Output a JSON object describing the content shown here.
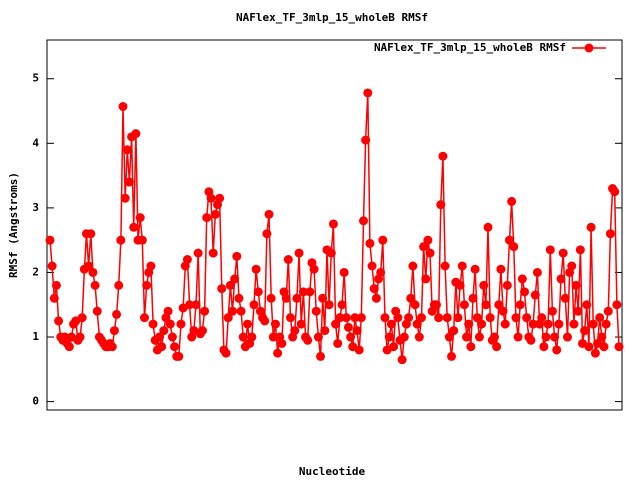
{
  "chart_data": {
    "type": "line",
    "title": "NAFlex_TF_3mlp_15_wholeB RMSf",
    "x_label": "Nucleotide",
    "y_label": "RMSf (Angstroms)",
    "ylim": [
      -0.13,
      5.6
    ],
    "yticks": [
      0,
      1,
      2,
      3,
      4,
      5
    ],
    "legend": "top-right",
    "series": [
      {
        "name": "NAFlex_TF_3mlp_15_wholeB RMSf",
        "color": "#ff0000",
        "values": [
          2.5,
          2.1,
          1.6,
          1.8,
          1.25,
          1.0,
          0.95,
          1.0,
          0.9,
          0.85,
          1.0,
          1.2,
          1.25,
          0.95,
          1.0,
          1.3,
          2.05,
          2.6,
          2.1,
          2.6,
          2.0,
          1.8,
          1.4,
          1.0,
          0.95,
          0.9,
          0.85,
          0.85,
          0.9,
          0.85,
          1.1,
          1.35,
          1.8,
          2.5,
          4.57,
          3.15,
          3.9,
          3.4,
          4.1,
          2.7,
          4.15,
          2.5,
          2.85,
          2.5,
          1.3,
          1.8,
          2.0,
          2.1,
          1.2,
          0.95,
          0.8,
          1.0,
          0.85,
          1.1,
          1.3,
          1.4,
          1.2,
          1.0,
          0.85,
          0.7,
          0.7,
          1.2,
          1.45,
          2.1,
          2.2,
          1.5,
          1.0,
          1.1,
          1.5,
          2.3,
          1.05,
          1.1,
          1.4,
          2.85,
          3.25,
          3.15,
          2.3,
          2.9,
          3.05,
          3.15,
          1.75,
          0.8,
          0.75,
          1.3,
          1.8,
          1.4,
          1.9,
          2.25,
          1.6,
          1.4,
          1.0,
          0.85,
          1.2,
          0.9,
          1.0,
          1.5,
          2.05,
          1.7,
          1.4,
          1.3,
          1.25,
          2.6,
          2.9,
          1.6,
          1.0,
          1.2,
          0.75,
          1.0,
          0.9,
          1.7,
          1.6,
          2.2,
          1.3,
          1.0,
          1.1,
          1.6,
          2.3,
          1.2,
          1.7,
          1.0,
          0.95,
          1.7,
          2.15,
          2.05,
          1.4,
          1.0,
          0.7,
          1.6,
          1.1,
          2.35,
          1.5,
          2.3,
          2.75,
          1.2,
          0.9,
          1.3,
          1.5,
          2.0,
          1.3,
          1.15,
          1.0,
          0.85,
          1.3,
          1.1,
          0.8,
          1.3,
          2.8,
          4.05,
          4.78,
          2.45,
          2.1,
          1.75,
          1.6,
          1.9,
          2.0,
          2.5,
          1.3,
          0.8,
          1.0,
          1.2,
          0.85,
          1.4,
          1.3,
          0.95,
          0.65,
          1.0,
          1.2,
          1.3,
          1.6,
          2.1,
          1.5,
          1.2,
          1.0,
          1.3,
          2.4,
          1.9,
          2.5,
          2.3,
          1.4,
          1.5,
          1.5,
          1.3,
          3.05,
          3.8,
          2.1,
          1.3,
          1.0,
          0.7,
          1.1,
          1.85,
          1.3,
          1.8,
          2.1,
          1.5,
          1.0,
          1.2,
          0.85,
          1.6,
          2.05,
          1.3,
          1.0,
          1.2,
          1.8,
          1.5,
          2.7,
          1.3,
          0.95,
          1.0,
          0.85,
          1.5,
          2.05,
          1.4,
          1.2,
          1.8,
          2.5,
          3.1,
          2.4,
          1.3,
          1.0,
          1.5,
          1.9,
          1.7,
          1.3,
          1.0,
          0.95,
          1.2,
          1.65,
          2.0,
          1.2,
          1.3,
          0.85,
          1.0,
          1.2,
          2.35,
          1.4,
          1.0,
          0.8,
          1.2,
          1.9,
          2.3,
          1.6,
          1.0,
          2.0,
          2.1,
          1.2,
          1.8,
          1.4,
          2.35,
          0.9,
          1.1,
          1.5,
          0.85,
          2.7,
          1.2,
          0.75,
          0.9,
          1.3,
          1.0,
          0.85,
          1.2,
          1.4,
          2.6,
          3.3,
          3.25,
          1.5,
          0.85
        ]
      }
    ]
  }
}
